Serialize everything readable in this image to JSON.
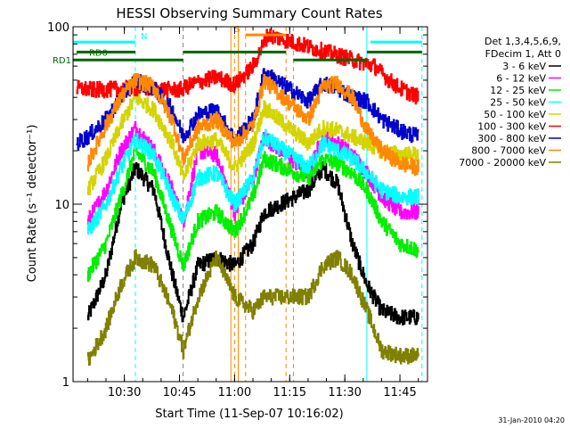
{
  "chart_data": {
    "type": "line",
    "title": "HESSI Observing Summary Count Rates",
    "xlabel": "Start Time (11-Sep-07 10:16:02)",
    "ylabel": "Count Rate (s⁻¹ detector⁻¹)",
    "y_scale": "log",
    "xlim": [
      "10:16:02",
      "11:52:30"
    ],
    "ylim": [
      1,
      100
    ],
    "x_ticks": [
      "10:30",
      "10:45",
      "11:00",
      "11:15",
      "11:30",
      "11:45"
    ],
    "y_ticks": [
      "1",
      "10",
      "100"
    ],
    "grid": false,
    "legend": {
      "position": "right",
      "header": [
        "Det 1,3,4,5,6,9,",
        "FDecim 1, Att 0"
      ]
    },
    "series": [
      {
        "name": "3 - 6 keV",
        "color": "#000000",
        "x": [
          "10:20",
          "10:25",
          "10:29",
          "10:33",
          "10:38",
          "10:43",
          "10:46",
          "10:50",
          "10:55",
          "11:00",
          "11:05",
          "11:08",
          "11:20",
          "11:24",
          "11:28",
          "11:32",
          "11:36",
          "11:40",
          "11:45",
          "11:50"
        ],
        "y": [
          2.3,
          4,
          10,
          16,
          12,
          4,
          2.3,
          4.5,
          5,
          4.5,
          6,
          9,
          12,
          16,
          13,
          6,
          3.5,
          2.5,
          2.3,
          2.3
        ]
      },
      {
        "name": "6 - 12 keV",
        "color": "#ff00ff",
        "x": [
          "10:20",
          "10:25",
          "10:29",
          "10:33",
          "10:38",
          "10:43",
          "10:46",
          "10:50",
          "10:55",
          "11:00",
          "11:05",
          "11:08",
          "11:20",
          "11:24",
          "11:28",
          "11:32",
          "11:36",
          "11:40",
          "11:45",
          "11:50"
        ],
        "y": [
          8,
          12,
          20,
          27,
          20,
          12,
          8,
          20,
          19,
          9,
          14,
          24,
          15,
          24,
          22,
          19,
          15,
          11,
          9,
          9
        ]
      },
      {
        "name": "12 - 25 keV",
        "color": "#00ee00",
        "x": [
          "10:20",
          "10:25",
          "10:29",
          "10:33",
          "10:38",
          "10:43",
          "10:46",
          "10:50",
          "10:55",
          "11:00",
          "11:05",
          "11:08",
          "11:20",
          "11:24",
          "11:28",
          "11:32",
          "11:36",
          "11:40",
          "11:45",
          "11:50"
        ],
        "y": [
          4,
          6,
          11,
          20,
          15,
          7,
          4.5,
          8,
          9,
          7,
          11,
          18,
          14,
          18,
          17,
          15,
          12,
          8,
          6,
          5.5
        ]
      },
      {
        "name": "25 - 50 keV",
        "color": "#00ffff",
        "x": [
          "10:20",
          "10:25",
          "10:29",
          "10:33",
          "10:38",
          "10:43",
          "10:46",
          "10:50",
          "10:55",
          "11:00",
          "11:05",
          "11:08",
          "11:20",
          "11:24",
          "11:28",
          "11:32",
          "11:36",
          "11:40",
          "11:45",
          "11:50"
        ],
        "y": [
          7,
          10,
          16,
          23,
          19,
          11,
          8,
          14,
          15,
          10,
          14,
          24,
          16,
          22,
          20,
          18,
          15,
          12,
          11,
          11
        ]
      },
      {
        "name": "50 - 100 keV",
        "color": "#d4d400",
        "x": [
          "10:20",
          "10:25",
          "10:29",
          "10:33",
          "10:38",
          "10:43",
          "10:46",
          "10:50",
          "10:55",
          "11:00",
          "11:05",
          "11:08",
          "11:20",
          "11:24",
          "11:28",
          "11:32",
          "11:36",
          "11:40",
          "11:45",
          "11:50"
        ],
        "y": [
          12,
          18,
          28,
          40,
          34,
          22,
          14,
          22,
          23,
          16,
          22,
          35,
          22,
          27,
          26,
          24,
          22,
          20,
          19,
          19
        ]
      },
      {
        "name": "100 - 300 keV",
        "color": "#ff0000",
        "x": [
          "10:17",
          "10:22",
          "10:33",
          "10:45",
          "10:49",
          "10:55",
          "11:00",
          "11:05",
          "11:09",
          "11:38",
          "11:42",
          "11:45",
          "11:50"
        ],
        "y": [
          45,
          44,
          45,
          44,
          48,
          52,
          47,
          60,
          90,
          60,
          50,
          45,
          40
        ]
      },
      {
        "name": "300 - 800 keV",
        "color": "#0000cc",
        "x": [
          "10:17",
          "10:20",
          "10:25",
          "10:29",
          "10:33",
          "10:38",
          "10:43",
          "10:46",
          "10:50",
          "10:55",
          "11:00",
          "11:05",
          "11:08",
          "11:20",
          "11:24",
          "11:28",
          "11:32",
          "11:36",
          "11:40",
          "11:45",
          "11:50"
        ],
        "y": [
          22,
          24,
          30,
          40,
          50,
          45,
          34,
          24,
          32,
          34,
          23,
          30,
          55,
          38,
          48,
          45,
          40,
          38,
          30,
          26,
          24
        ]
      },
      {
        "name": "800 - 7000 keV",
        "color": "#ff8800",
        "x": [
          "10:20",
          "10:25",
          "10:29",
          "10:33",
          "10:38",
          "10:43",
          "10:46",
          "10:50",
          "10:55",
          "11:00",
          "11:05",
          "11:08",
          "11:20",
          "11:24",
          "11:28",
          "11:32",
          "11:36",
          "11:40",
          "11:45",
          "11:50"
        ],
        "y": [
          17,
          28,
          40,
          50,
          46,
          30,
          18,
          27,
          30,
          22,
          28,
          50,
          30,
          46,
          48,
          40,
          26,
          20,
          17,
          16
        ]
      },
      {
        "name": "7000 - 20000 keV",
        "color": "#808000",
        "x": [
          "10:20",
          "10:25",
          "10:29",
          "10:33",
          "10:38",
          "10:43",
          "10:46",
          "10:50",
          "10:55",
          "11:00",
          "11:05",
          "11:08",
          "11:20",
          "11:24",
          "11:28",
          "11:32",
          "11:36",
          "11:40",
          "11:45",
          "11:50"
        ],
        "y": [
          1.3,
          2,
          3.5,
          5,
          4.5,
          2.5,
          1.5,
          3,
          5,
          3,
          2.5,
          3,
          3,
          4.5,
          5,
          4,
          2.5,
          1.5,
          1.4,
          1.4
        ]
      }
    ],
    "annotations": [
      {
        "label": "N",
        "color": "#00ffff",
        "x_start": "10:16:02",
        "x_end": "10:33",
        "y": 82
      },
      {
        "label": "RD0",
        "color": "#006600",
        "x_start": "10:17",
        "x_end": "10:33",
        "y": 72
      },
      {
        "label": "RD1",
        "color": "#006600",
        "x_start": "10:16:02",
        "x_end": "10:46",
        "y": 65
      },
      {
        "label": "S",
        "color": "#ff8800",
        "x_start": "11:03",
        "x_end": "11:14",
        "y": 90
      },
      {
        "label": "",
        "color": "#006600",
        "x_start": "10:46",
        "x_end": "11:14",
        "y": 72
      },
      {
        "label": "",
        "color": "#006600",
        "x_start": "11:16",
        "x_end": "11:36",
        "y": 65
      },
      {
        "label": "",
        "color": "#006600",
        "x_start": "11:36",
        "x_end": "11:51",
        "y": 72
      },
      {
        "label": "",
        "color": "#00ffff",
        "x_start": "11:37",
        "x_end": "11:51",
        "y": 82
      }
    ],
    "vlines": [
      {
        "x": "10:16:05",
        "color": "#00ffff",
        "style": "solid"
      },
      {
        "x": "10:33",
        "color": "#00ffff",
        "style": "dashed"
      },
      {
        "x": "10:46",
        "color": "#808080",
        "style": "dashed"
      },
      {
        "x": "10:59",
        "color": "#ff8800",
        "style": "solid"
      },
      {
        "x": "11:00",
        "color": "#ff8800",
        "style": "dashed"
      },
      {
        "x": "11:01",
        "color": "#ff8800",
        "style": "solid"
      },
      {
        "x": "11:03",
        "color": "#ff8800",
        "style": "dashed"
      },
      {
        "x": "11:14",
        "color": "#ff8800",
        "style": "dashed"
      },
      {
        "x": "11:16",
        "color": "#ff8800",
        "style": "dashed"
      },
      {
        "x": "11:36",
        "color": "#00ffff",
        "style": "solid"
      },
      {
        "x": "11:51",
        "color": "#00ffff",
        "style": "dashed"
      }
    ],
    "footer": "31-Jan-2010 04:20"
  }
}
